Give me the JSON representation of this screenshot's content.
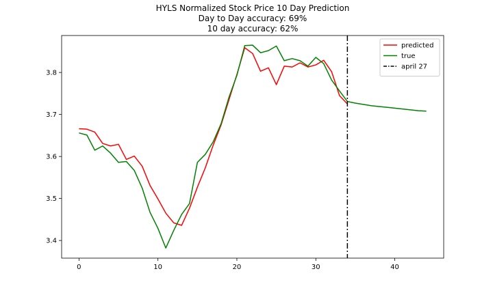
{
  "chart_data": {
    "type": "line",
    "title_lines": [
      "HYLS Normalized Stock Price 10 Day Prediction",
      "Day to Day accuracy: 69%",
      "10 day accuracy: 62%"
    ],
    "xlabel": "",
    "ylabel": "",
    "xlim": [
      -2.2,
      46.2
    ],
    "ylim": [
      3.358,
      3.888
    ],
    "xticks": [
      0,
      10,
      20,
      30,
      40
    ],
    "yticks": [
      3.4,
      3.5,
      3.6,
      3.7,
      3.8
    ],
    "grid": false,
    "legend_position": "top-right",
    "series": [
      {
        "name": "predicted",
        "color": "#ff0000",
        "style": "solid",
        "x": [
          0,
          1,
          2,
          3,
          4,
          5,
          6,
          7,
          8,
          9,
          10,
          11,
          12,
          13,
          14,
          15,
          16,
          17,
          18,
          19,
          20,
          21,
          22,
          23,
          24,
          25,
          26,
          27,
          28,
          29,
          30,
          31,
          32,
          33,
          34
        ],
        "y": [
          3.666,
          3.665,
          3.658,
          3.631,
          3.625,
          3.629,
          3.593,
          3.601,
          3.577,
          3.531,
          3.499,
          3.465,
          3.442,
          3.436,
          3.477,
          3.527,
          3.573,
          3.627,
          3.675,
          3.735,
          3.795,
          3.859,
          3.845,
          3.803,
          3.811,
          3.771,
          3.815,
          3.813,
          3.823,
          3.813,
          3.818,
          3.829,
          3.802,
          3.745,
          3.725
        ]
      },
      {
        "name": "true",
        "color": "#008000",
        "style": "solid",
        "x": [
          0,
          1,
          2,
          3,
          4,
          5,
          6,
          7,
          8,
          9,
          10,
          11,
          12,
          13,
          14,
          15,
          16,
          17,
          18,
          19,
          20,
          21,
          22,
          23,
          24,
          25,
          26,
          27,
          28,
          29,
          30,
          31,
          32,
          33,
          34,
          35,
          36,
          37,
          38,
          39,
          40,
          41,
          42,
          43,
          44
        ],
        "y": [
          3.656,
          3.651,
          3.615,
          3.625,
          3.608,
          3.586,
          3.588,
          3.567,
          3.525,
          3.467,
          3.429,
          3.382,
          3.424,
          3.462,
          3.488,
          3.586,
          3.605,
          3.635,
          3.678,
          3.741,
          3.793,
          3.864,
          3.865,
          3.847,
          3.852,
          3.863,
          3.828,
          3.833,
          3.828,
          3.815,
          3.836,
          3.821,
          3.782,
          3.756,
          3.731,
          3.727,
          3.724,
          3.721,
          3.719,
          3.717,
          3.715,
          3.713,
          3.711,
          3.709,
          3.708
        ]
      }
    ],
    "vlines": [
      {
        "name": "april 27",
        "x": 34,
        "color": "#000000",
        "style": "dashdot"
      }
    ]
  }
}
